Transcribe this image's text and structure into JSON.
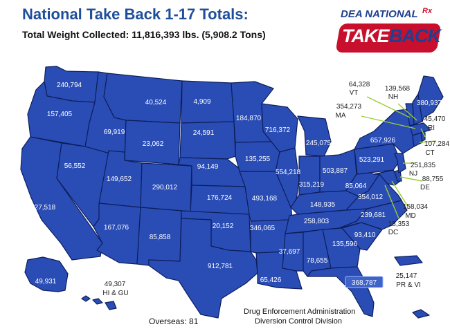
{
  "title": "National Take Back 1-17 Totals:",
  "subtitle": "Total Weight Collected: 11,816,393 lbs.   (5,908.2 Tons)",
  "logo": {
    "top": "DEA NATIONAL",
    "rx": "Rx",
    "take": "TAKE",
    "back": "BACK",
    "accent": "#c8102e",
    "brand": "#1f3f8f"
  },
  "map_colors": {
    "state_fill": "#2a4db5",
    "state_stroke": "#0d1e5c",
    "leader": "#9acd32"
  },
  "states": {
    "WA": "240,794",
    "OR": "157,405",
    "CA": "1,027,518",
    "NV": "56,552",
    "ID": "69,919",
    "MT": "40,524",
    "WY": "23,062",
    "UT": "149,652",
    "AZ": "167,076",
    "CO": "290,012",
    "NM": "85,858",
    "ND": "4,909",
    "SD": "24,591",
    "NE": "94,149",
    "KS": "176,724",
    "OK": "20,152",
    "TX": "912,781",
    "MN": "184,870",
    "IA": "135,255",
    "MO": "493,168",
    "AR": "346,065",
    "LA": "65,426",
    "WI": "716,372",
    "IL": "554,218",
    "MI": "245,075",
    "IN": "315,219",
    "OH": "503,887",
    "KY": "148,935",
    "TN": "258,803",
    "MS": "37,697",
    "AL": "78,655",
    "GA": "135,596",
    "FL": "368,787",
    "SC": "93,410",
    "NC": "239,681",
    "VA": "354,012",
    "WV": "85,064",
    "PA": "523,291",
    "NY": "657,926",
    "ME": "380,937",
    "AK": "49,931"
  },
  "callouts": {
    "VT": {
      "value": "64,328",
      "code": "VT"
    },
    "NH": {
      "value": "139,568",
      "code": "NH"
    },
    "MA": {
      "value": "354,273",
      "code": "MA"
    },
    "RI": {
      "value": "45,470",
      "code": "RI"
    },
    "CT": {
      "value": "107,284",
      "code": "CT"
    },
    "NJ": {
      "value": "251,835",
      "code": "NJ"
    },
    "DE": {
      "value": "88,755",
      "code": "DE"
    },
    "MD": {
      "value": "158,034",
      "code": "MD"
    },
    "DC": {
      "value": "18,353",
      "code": "DC"
    },
    "HI": {
      "value": "49,307",
      "code": "HI & GU"
    },
    "PR": {
      "value": "25,147",
      "code": "PR & VI"
    }
  },
  "footer": {
    "overseas": "Overseas:  81",
    "agency_line1": "Drug Enforcement Administration",
    "agency_line2": "Diversion Control Division"
  }
}
